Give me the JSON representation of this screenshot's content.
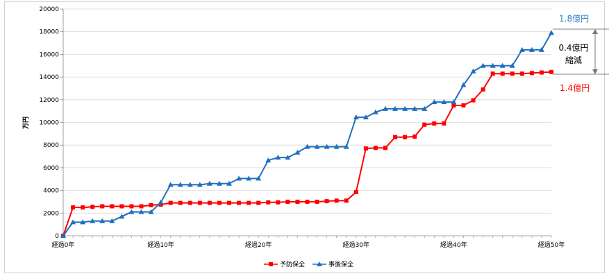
{
  "chart_data": {
    "type": "line",
    "ylabel": "万円",
    "ylim": [
      0,
      20000
    ],
    "yticks": [
      0,
      2000,
      4000,
      6000,
      8000,
      10000,
      12000,
      14000,
      16000,
      18000,
      20000
    ],
    "xlim": [
      0,
      50
    ],
    "xticks": [
      {
        "x": 0,
        "label": "経過0年"
      },
      {
        "x": 10,
        "label": "経過10年"
      },
      {
        "x": 20,
        "label": "経過20年"
      },
      {
        "x": 30,
        "label": "経過30年"
      },
      {
        "x": 40,
        "label": "経過40年"
      },
      {
        "x": 50,
        "label": "経過50年"
      }
    ],
    "x": [
      0,
      1,
      2,
      3,
      4,
      5,
      6,
      7,
      8,
      9,
      10,
      11,
      12,
      13,
      14,
      15,
      16,
      17,
      18,
      19,
      20,
      21,
      22,
      23,
      24,
      25,
      26,
      27,
      28,
      29,
      30,
      31,
      32,
      33,
      34,
      35,
      36,
      37,
      38,
      39,
      40,
      41,
      42,
      43,
      44,
      45,
      46,
      47,
      48,
      49,
      50
    ],
    "series": [
      {
        "name": "予防保全",
        "color": "#ff0000",
        "marker": "square",
        "values": [
          0,
          2500,
          2500,
          2550,
          2600,
          2600,
          2600,
          2600,
          2600,
          2700,
          2750,
          2900,
          2900,
          2900,
          2900,
          2900,
          2900,
          2900,
          2900,
          2900,
          2900,
          2950,
          2950,
          3000,
          3000,
          3000,
          3000,
          3050,
          3100,
          3100,
          3850,
          7700,
          7750,
          7750,
          8700,
          8700,
          8750,
          9800,
          9900,
          9900,
          11500,
          11500,
          11950,
          12900,
          14300,
          14300,
          14300,
          14300,
          14350,
          14400,
          14450
        ]
      },
      {
        "name": "事後保全",
        "color": "#1f6fbf",
        "marker": "triangle",
        "values": [
          0,
          1200,
          1200,
          1300,
          1300,
          1300,
          1700,
          2100,
          2100,
          2100,
          2950,
          4500,
          4500,
          4500,
          4500,
          4600,
          4600,
          4600,
          5050,
          5050,
          5050,
          6650,
          6900,
          6900,
          7350,
          7850,
          7850,
          7850,
          7850,
          7850,
          10450,
          10450,
          10900,
          11200,
          11200,
          11200,
          11200,
          11200,
          11800,
          11800,
          11800,
          13300,
          14500,
          15000,
          15000,
          15000,
          15000,
          16400,
          16400,
          16400,
          17900
        ]
      }
    ],
    "legend": {
      "position": "bottom"
    },
    "annotations": {
      "top_value": "1.8億円",
      "bottom_value": "1.4億円",
      "diff_line1": "0.4億円",
      "diff_line2": "縮減"
    }
  }
}
